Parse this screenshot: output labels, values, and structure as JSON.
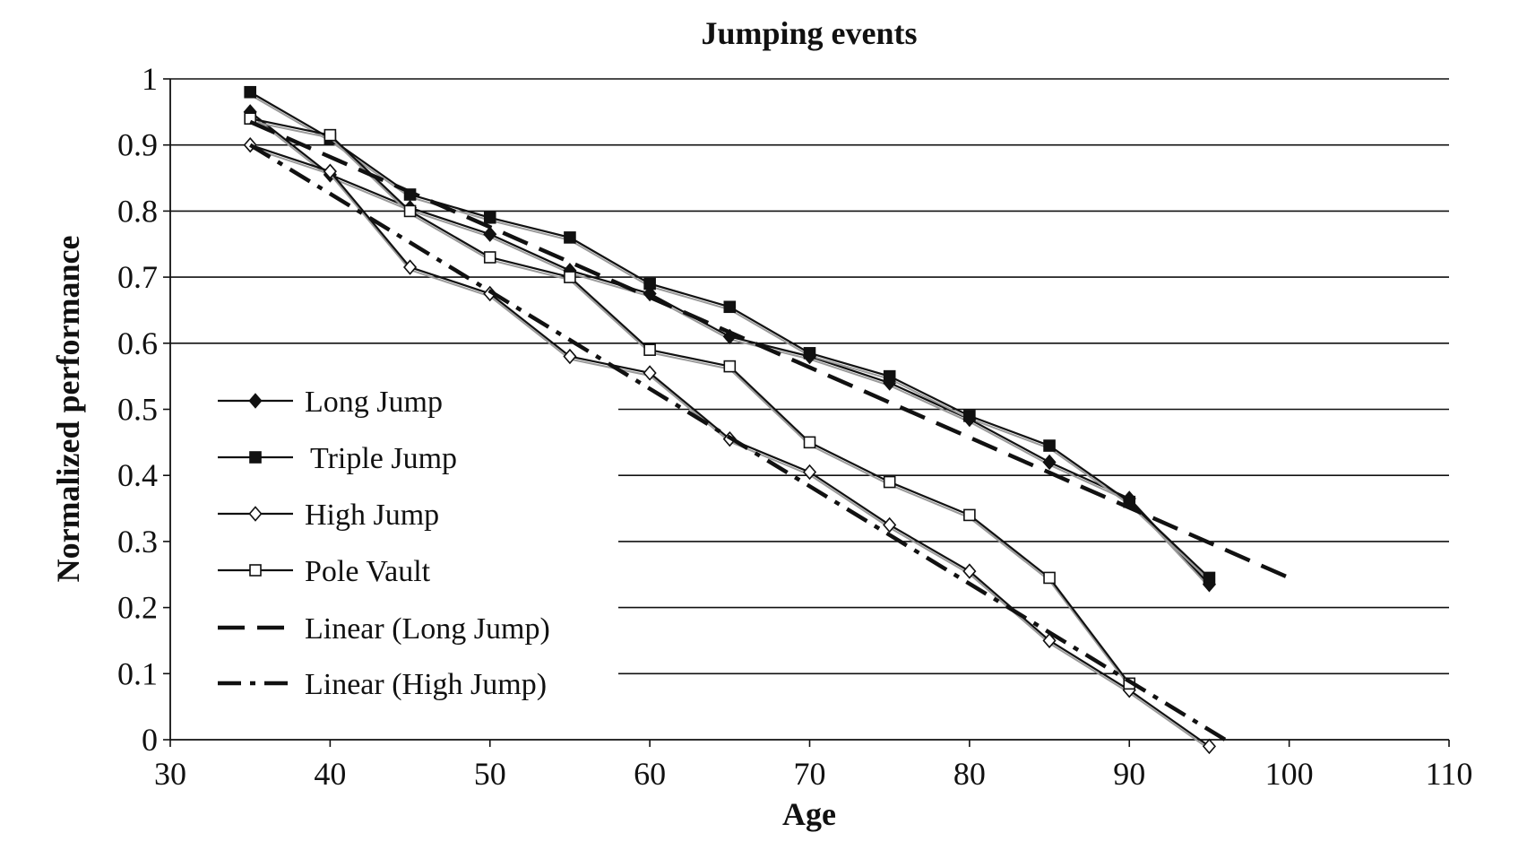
{
  "chart_data": {
    "type": "line",
    "title": "Jumping events",
    "xlabel": "Age",
    "ylabel": "Normalized performance",
    "xlim": [
      30,
      110
    ],
    "ylim": [
      0,
      1
    ],
    "x_ticks": [
      30,
      40,
      50,
      60,
      70,
      80,
      90,
      100,
      110
    ],
    "y_ticks": [
      0,
      0.1,
      0.2,
      0.3,
      0.4,
      0.5,
      0.6,
      0.7,
      0.8,
      0.9,
      1
    ],
    "y_tick_labels": [
      "0",
      "0.1",
      "0.2",
      "0.3",
      "0.4",
      "0.5",
      "0.6",
      "0.7",
      "0.8",
      "0.9",
      "1"
    ],
    "grid": "horizontal",
    "legend_position": "left",
    "series": [
      {
        "name": "Long Jump",
        "marker": "filled-diamond",
        "x": [
          35,
          40,
          45,
          50,
          55,
          60,
          65,
          70,
          75,
          80,
          85,
          90,
          95
        ],
        "y": [
          0.95,
          0.855,
          0.805,
          0.765,
          0.71,
          0.675,
          0.61,
          0.58,
          0.54,
          0.485,
          0.42,
          0.365,
          0.235
        ]
      },
      {
        "name": "Triple Jump",
        "marker": "filled-square",
        "x": [
          35,
          40,
          45,
          50,
          55,
          60,
          65,
          70,
          75,
          80,
          85,
          90,
          95
        ],
        "y": [
          0.98,
          0.91,
          0.825,
          0.79,
          0.76,
          0.69,
          0.655,
          0.585,
          0.55,
          0.49,
          0.445,
          0.36,
          0.245
        ]
      },
      {
        "name": "High Jump",
        "marker": "open-diamond",
        "x": [
          35,
          40,
          45,
          50,
          55,
          60,
          65,
          70,
          75,
          80,
          85,
          90,
          95
        ],
        "y": [
          0.9,
          0.86,
          0.715,
          0.675,
          0.58,
          0.555,
          0.455,
          0.405,
          0.325,
          0.255,
          0.15,
          0.075,
          -0.01
        ]
      },
      {
        "name": "Pole Vault",
        "marker": "open-square",
        "x": [
          35,
          40,
          45,
          50,
          55,
          60,
          65,
          70,
          75,
          80,
          85,
          90
        ],
        "y": [
          0.94,
          0.915,
          0.8,
          0.73,
          0.7,
          0.59,
          0.565,
          0.45,
          0.39,
          0.34,
          0.245,
          0.085
        ]
      },
      {
        "name": "Linear (Long Jump)",
        "line_style": "long-dash",
        "x": [
          35,
          100
        ],
        "y": [
          0.935,
          0.245
        ]
      },
      {
        "name": "Linear (High Jump)",
        "line_style": "dash-dot",
        "x": [
          35,
          96
        ],
        "y": [
          0.9,
          0
        ]
      }
    ]
  }
}
